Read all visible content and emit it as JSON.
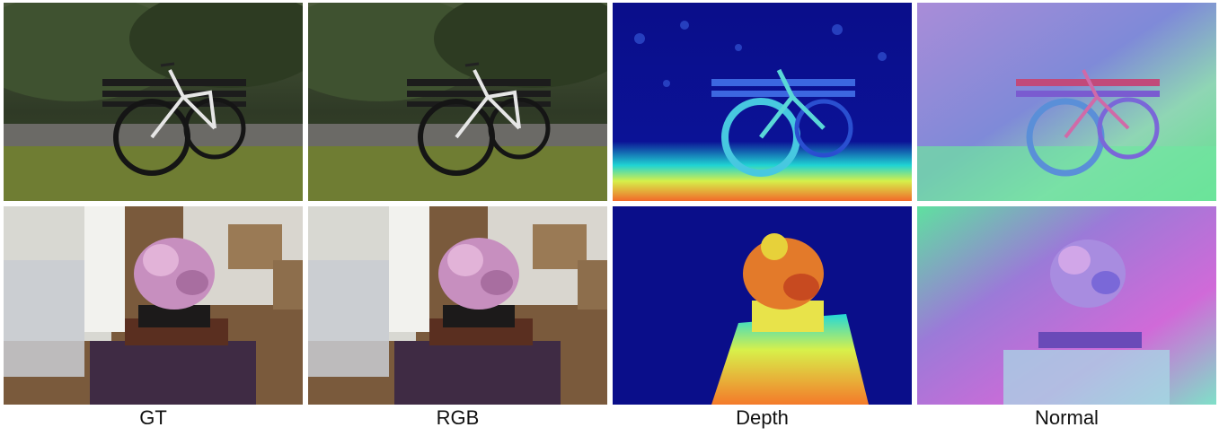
{
  "figure": {
    "columns": [
      {
        "label": "GT"
      },
      {
        "label": "RGB"
      },
      {
        "label": "Depth"
      },
      {
        "label": "Normal"
      }
    ],
    "rows": [
      {
        "scene": "bicycle-bench"
      },
      {
        "scene": "bonsai-table"
      }
    ]
  }
}
